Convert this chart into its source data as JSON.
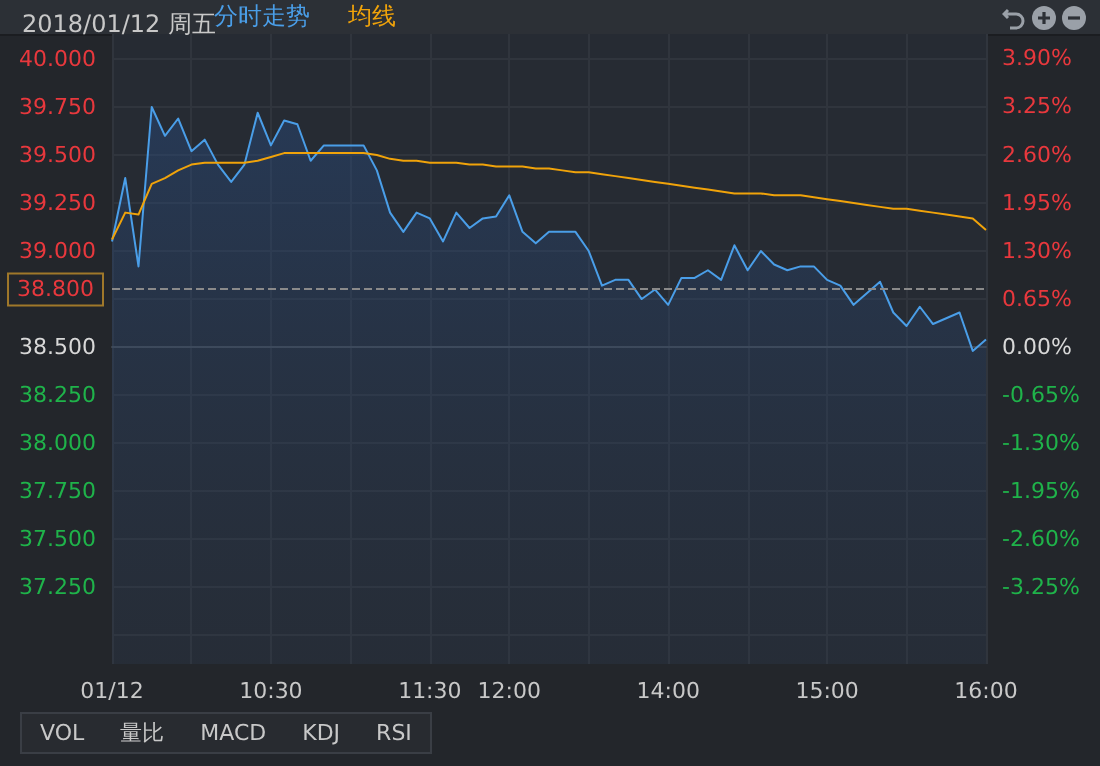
{
  "chart_data": {
    "type": "area",
    "title": "2018/01/12 周五",
    "categories": [
      "01/12",
      null,
      null,
      null,
      null,
      null,
      null,
      null,
      null,
      null,
      null,
      null,
      "10:30",
      null,
      null,
      null,
      null,
      null,
      null,
      null,
      null,
      null,
      null,
      null,
      "11:30",
      null,
      null,
      null,
      null,
      null,
      "12:00",
      null,
      null,
      null,
      null,
      null,
      null,
      null,
      null,
      null,
      null,
      null,
      "14:00",
      null,
      null,
      null,
      null,
      null,
      null,
      null,
      null,
      null,
      null,
      null,
      "15:00",
      null,
      null,
      null,
      null,
      null,
      null,
      null,
      null,
      null,
      null,
      null,
      "16:00"
    ],
    "series": [
      {
        "name": "分时走势",
        "color": "#4a9ee8",
        "values": [
          39.05,
          39.38,
          38.92,
          39.75,
          39.6,
          39.69,
          39.52,
          39.58,
          39.45,
          39.36,
          39.45,
          39.72,
          39.55,
          39.68,
          39.66,
          39.47,
          39.55,
          39.55,
          39.55,
          39.55,
          39.42,
          39.2,
          39.1,
          39.2,
          39.17,
          39.05,
          39.2,
          39.12,
          39.17,
          39.18,
          39.29,
          39.1,
          39.04,
          39.1,
          39.1,
          39.1,
          39.0,
          38.82,
          38.85,
          38.85,
          38.75,
          38.8,
          38.72,
          38.86,
          38.86,
          38.9,
          38.85,
          39.03,
          38.9,
          39.0,
          38.93,
          38.9,
          38.92,
          38.92,
          38.85,
          38.82,
          38.72,
          38.78,
          38.84,
          38.68,
          38.61,
          38.71,
          38.62,
          38.65,
          38.68,
          38.48,
          38.54
        ]
      },
      {
        "name": "均线",
        "type": "line",
        "color": "#f0a30a",
        "values": [
          39.06,
          39.2,
          39.19,
          39.35,
          39.38,
          39.42,
          39.45,
          39.46,
          39.46,
          39.46,
          39.46,
          39.47,
          39.49,
          39.51,
          39.51,
          39.51,
          39.51,
          39.51,
          39.51,
          39.51,
          39.5,
          39.48,
          39.47,
          39.47,
          39.46,
          39.46,
          39.46,
          39.45,
          39.45,
          39.44,
          39.44,
          39.44,
          39.43,
          39.43,
          39.42,
          39.41,
          39.41,
          39.4,
          39.39,
          39.38,
          39.37,
          39.36,
          39.35,
          39.34,
          39.33,
          39.32,
          39.31,
          39.3,
          39.3,
          39.3,
          39.29,
          39.29,
          39.29,
          39.28,
          39.27,
          39.26,
          39.25,
          39.24,
          39.23,
          39.22,
          39.22,
          39.21,
          39.2,
          39.19,
          39.18,
          39.17,
          39.11
        ]
      }
    ],
    "ylim": [
      36.85,
      40.13
    ],
    "yticks": [
      {
        "value": 37,
        "label": null
      },
      {
        "value": 37.25,
        "label": "37.250"
      },
      {
        "value": 37.5,
        "label": "37.500"
      },
      {
        "value": 37.75,
        "label": "37.750"
      },
      {
        "value": 38,
        "label": "38.000"
      },
      {
        "value": 38.25,
        "label": "38.250"
      },
      {
        "value": 38.5,
        "label": "38.500"
      },
      {
        "value": 38.75,
        "label": null
      },
      {
        "value": 39,
        "label": "39.000"
      },
      {
        "value": 39.25,
        "label": "39.250"
      },
      {
        "value": 39.5,
        "label": "39.500"
      },
      {
        "value": 39.75,
        "label": "39.750"
      },
      {
        "value": 40,
        "label": "40.000"
      }
    ],
    "y2lim": [
      -4.29,
      4.23
    ],
    "y2ticks": [
      {
        "value": -3.25,
        "label": "-3.25%"
      },
      {
        "value": -2.6,
        "label": "-2.60%"
      },
      {
        "value": -1.95,
        "label": "-1.95%"
      },
      {
        "value": -1.3,
        "label": "-1.30%"
      },
      {
        "value": -0.65,
        "label": "-0.65%"
      },
      {
        "value": 0,
        "label": "0.00%"
      },
      {
        "value": 0.65,
        "label": "0.65%"
      },
      {
        "value": 1.3,
        "label": "1.30%"
      },
      {
        "value": 1.95,
        "label": "1.95%"
      },
      {
        "value": 2.6,
        "label": "2.60%"
      },
      {
        "value": 3.25,
        "label": "3.25%"
      },
      {
        "value": 3.9,
        "label": "3.90%"
      }
    ],
    "ref_lines": [
      {
        "axis": "y",
        "value": 38.8,
        "label": "38.800",
        "line_style": "dashed",
        "color": "#8a8a8a"
      }
    ],
    "annotations": [
      "VOL",
      "量比",
      "MACD",
      "KDJ",
      "RSI"
    ],
    "grid": true,
    "legend": "top left"
  }
}
